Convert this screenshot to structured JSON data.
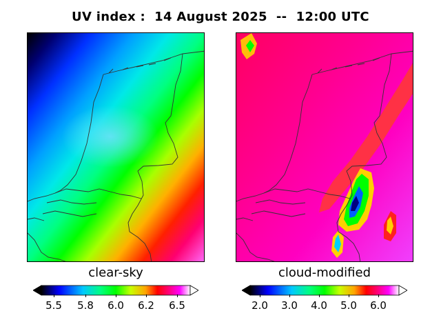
{
  "title": "UV index :  14 August 2025  --  12:00 UTC",
  "panels": [
    {
      "label": "clear-sky"
    },
    {
      "label": "cloud-modified"
    }
  ],
  "colorbars": [
    {
      "ticks": [
        "5.5",
        "5.8",
        "6.0",
        "6.2",
        "6.5"
      ]
    },
    {
      "ticks": [
        "2.0",
        "3.0",
        "4.0",
        "5.0",
        "6.0"
      ]
    }
  ],
  "colors": {
    "colormap": [
      "#000000",
      "#0000ff",
      "#00c8ff",
      "#00ff7f",
      "#00ff00",
      "#c8ff00",
      "#ffa500",
      "#ff0000",
      "#ff007f",
      "#ff00ff",
      "#ffffff"
    ],
    "coastline": "#333333"
  }
}
